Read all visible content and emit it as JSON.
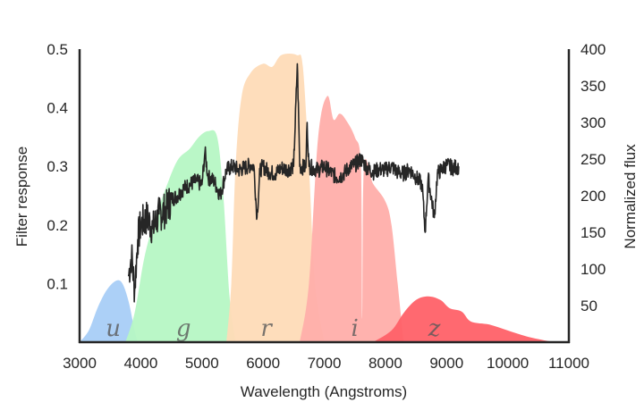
{
  "chart_data": {
    "type": "area",
    "title": "",
    "xlabel": "Wavelength (Angstroms)",
    "ylabel": "Filter response",
    "y2label": "Normalized flux",
    "xlim": [
      3000,
      11000
    ],
    "ylim": [
      0,
      0.5
    ],
    "y2lim": [
      0,
      400
    ],
    "grid": false,
    "legend": "none",
    "x_ticks": [
      "3000",
      "4000",
      "5000",
      "6000",
      "7000",
      "8000",
      "9000",
      "10000",
      "11000"
    ],
    "y_ticks": [
      "0.1",
      "0.2",
      "0.3",
      "0.4",
      "0.5"
    ],
    "y2_ticks": [
      "50",
      "100",
      "150",
      "200",
      "250",
      "300",
      "350",
      "400"
    ],
    "filters": [
      {
        "name": "u",
        "color": "#a8cdf7",
        "label_x": 3550,
        "points": [
          [
            3000,
            0
          ],
          [
            3150,
            0.02
          ],
          [
            3300,
            0.06
          ],
          [
            3450,
            0.09
          ],
          [
            3600,
            0.105
          ],
          [
            3700,
            0.1
          ],
          [
            3800,
            0.07
          ],
          [
            3900,
            0.02
          ],
          [
            3950,
            0
          ]
        ]
      },
      {
        "name": "g",
        "color": "#b6f7c4",
        "label_x": 4700,
        "points": [
          [
            3750,
            0
          ],
          [
            3900,
            0.05
          ],
          [
            4050,
            0.14
          ],
          [
            4200,
            0.2
          ],
          [
            4400,
            0.26
          ],
          [
            4600,
            0.31
          ],
          [
            4800,
            0.33
          ],
          [
            4950,
            0.35
          ],
          [
            5100,
            0.36
          ],
          [
            5250,
            0.35
          ],
          [
            5350,
            0.25
          ],
          [
            5450,
            0.08
          ],
          [
            5550,
            0
          ]
        ]
      },
      {
        "name": "r",
        "color": "#fedbb7",
        "label_x": 6050,
        "points": [
          [
            5400,
            0
          ],
          [
            5480,
            0.1
          ],
          [
            5550,
            0.3
          ],
          [
            5650,
            0.42
          ],
          [
            5800,
            0.46
          ],
          [
            6000,
            0.475
          ],
          [
            6150,
            0.47
          ],
          [
            6300,
            0.49
          ],
          [
            6550,
            0.49
          ],
          [
            6650,
            0.47
          ],
          [
            6750,
            0.3
          ],
          [
            6850,
            0.1
          ],
          [
            7000,
            0
          ]
        ]
      },
      {
        "name": "i",
        "color": "#ffaeaa",
        "label_x": 7500,
        "points": [
          [
            6600,
            0
          ],
          [
            6750,
            0.1
          ],
          [
            6900,
            0.35
          ],
          [
            7050,
            0.42
          ],
          [
            7150,
            0.38
          ],
          [
            7250,
            0.39
          ],
          [
            7350,
            0.38
          ],
          [
            7500,
            0.35
          ],
          [
            7600,
            0.3
          ],
          [
            7620,
            0.04
          ],
          [
            7650,
            0.3
          ],
          [
            7800,
            0.27
          ],
          [
            8000,
            0.24
          ],
          [
            8100,
            0.2
          ],
          [
            8200,
            0.1
          ],
          [
            8300,
            0
          ]
        ]
      },
      {
        "name": "z",
        "color": "#ff6168",
        "label_x": 8800,
        "points": [
          [
            7800,
            0
          ],
          [
            8100,
            0.02
          ],
          [
            8300,
            0.05
          ],
          [
            8500,
            0.072
          ],
          [
            8700,
            0.078
          ],
          [
            8900,
            0.072
          ],
          [
            9050,
            0.058
          ],
          [
            9250,
            0.052
          ],
          [
            9400,
            0.035
          ],
          [
            9700,
            0.03
          ],
          [
            10000,
            0.02
          ],
          [
            10300,
            0.01
          ],
          [
            10600,
            0.003
          ],
          [
            10800,
            0
          ]
        ]
      }
    ],
    "spectrum": {
      "name": "Normalized flux",
      "color": "#262626",
      "points": [
        [
          3800,
          90
        ],
        [
          3850,
          120
        ],
        [
          3900,
          70
        ],
        [
          3950,
          140
        ],
        [
          4000,
          160
        ],
        [
          4100,
          170
        ],
        [
          4200,
          155
        ],
        [
          4300,
          175
        ],
        [
          4400,
          180
        ],
        [
          4500,
          195
        ],
        [
          4600,
          200
        ],
        [
          4700,
          210
        ],
        [
          4800,
          215
        ],
        [
          4900,
          220
        ],
        [
          5000,
          215
        ],
        [
          5050,
          260
        ],
        [
          5100,
          225
        ],
        [
          5200,
          220
        ],
        [
          5300,
          200
        ],
        [
          5400,
          235
        ],
        [
          5500,
          240
        ],
        [
          5600,
          235
        ],
        [
          5700,
          238
        ],
        [
          5800,
          242
        ],
        [
          5850,
          240
        ],
        [
          5900,
          170
        ],
        [
          5950,
          235
        ],
        [
          6000,
          240
        ],
        [
          6100,
          232
        ],
        [
          6200,
          230
        ],
        [
          6300,
          238
        ],
        [
          6400,
          236
        ],
        [
          6500,
          240
        ],
        [
          6560,
          380
        ],
        [
          6600,
          240
        ],
        [
          6700,
          238
        ],
        [
          6720,
          300
        ],
        [
          6750,
          240
        ],
        [
          6900,
          235
        ],
        [
          7000,
          240
        ],
        [
          7100,
          232
        ],
        [
          7200,
          225
        ],
        [
          7300,
          228
        ],
        [
          7400,
          238
        ],
        [
          7500,
          242
        ],
        [
          7600,
          250
        ],
        [
          7700,
          238
        ],
        [
          7800,
          232
        ],
        [
          7900,
          236
        ],
        [
          8000,
          235
        ],
        [
          8100,
          240
        ],
        [
          8200,
          232
        ],
        [
          8300,
          230
        ],
        [
          8400,
          236
        ],
        [
          8500,
          225
        ],
        [
          8600,
          215
        ],
        [
          8650,
          150
        ],
        [
          8700,
          225
        ],
        [
          8800,
          170
        ],
        [
          8850,
          230
        ],
        [
          9000,
          242
        ],
        [
          9100,
          238
        ],
        [
          9200,
          240
        ]
      ]
    }
  }
}
